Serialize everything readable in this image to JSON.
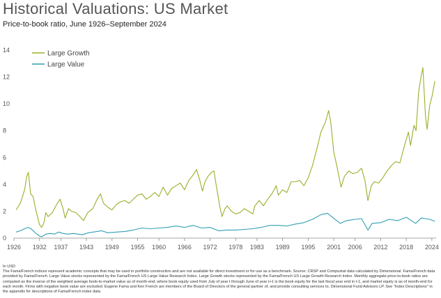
{
  "title": "Historical Valuations: US Market",
  "subtitle": "Price-to-book ratio, June 1926–September 2024",
  "footnotes": {
    "currency": "In USD",
    "disclaimer": "The Fama/French indices represent academic concepts that may be used in portfolio construction and are not available for direct investment or for use as a benchmark. Source: CRSP and Compustat data calculated by Dimensional. Fama/French data provided by Fama/French. Large Value stocks represented by the Fama/French US Large Value Research Index. Large Growth stocks represented by the Fama/French US Large Growth Research Index. Monthly aggregate price-to-book ratios are computed as the inverse of the weighted average book-to-market value as of month-end, where book equity used from July of year t through June of year t+1 is the book equity for the last fiscal year end in t-1, and market equity is as of month-end for each month. Firms with negative book value are excluded. Eugene Fama and Ken French are members of the Board of Directors of the general partner of, and provide consulting services to, Dimensional Fund Advisors LP. See \"Index Descriptions\" in the appendix for descriptions of Fama/French index data."
  },
  "chart_data": {
    "type": "line",
    "title": "Historical Valuations: US Market",
    "subtitle": "Price-to-book ratio, June 1926–September 2024",
    "xlabel": "",
    "ylabel": "",
    "xlim": [
      1926,
      2025
    ],
    "ylim": [
      0,
      14
    ],
    "yticks": [
      "0",
      "2",
      "4",
      "6",
      "8",
      "10",
      "12",
      "14"
    ],
    "xticks": [
      "1926",
      "1932",
      "1937",
      "1943",
      "1949",
      "1955",
      "1960",
      "1966",
      "1972",
      "1978",
      "1983",
      "1989",
      "1995",
      "2001",
      "2006",
      "2012",
      "2018",
      "2024"
    ],
    "grid": false,
    "legend_position": "top-left",
    "series": [
      {
        "name": "Large Growth",
        "color": "#9aaf2a",
        "points": [
          [
            1926.5,
            2.1
          ],
          [
            1927.5,
            2.6
          ],
          [
            1928.5,
            3.6
          ],
          [
            1929.0,
            4.6
          ],
          [
            1929.4,
            4.9
          ],
          [
            1929.9,
            3.3
          ],
          [
            1930.5,
            3.1
          ],
          [
            1931.0,
            2.3
          ],
          [
            1931.5,
            1.6
          ],
          [
            1932.0,
            1.0
          ],
          [
            1932.5,
            0.8
          ],
          [
            1933.0,
            1.1
          ],
          [
            1933.5,
            1.9
          ],
          [
            1934.0,
            1.6
          ],
          [
            1935.0,
            1.9
          ],
          [
            1936.0,
            2.5
          ],
          [
            1936.8,
            2.9
          ],
          [
            1937.5,
            2.2
          ],
          [
            1938.0,
            1.5
          ],
          [
            1938.8,
            2.2
          ],
          [
            1939.5,
            2.0
          ],
          [
            1940.5,
            1.9
          ],
          [
            1941.5,
            1.6
          ],
          [
            1942.3,
            1.3
          ],
          [
            1943.3,
            1.9
          ],
          [
            1944.5,
            2.2
          ],
          [
            1945.5,
            2.9
          ],
          [
            1946.3,
            3.3
          ],
          [
            1947.0,
            2.6
          ],
          [
            1948.0,
            2.3
          ],
          [
            1949.0,
            2.1
          ],
          [
            1950.0,
            2.5
          ],
          [
            1951.0,
            2.7
          ],
          [
            1952.0,
            2.8
          ],
          [
            1953.0,
            2.6
          ],
          [
            1954.0,
            2.9
          ],
          [
            1955.0,
            3.2
          ],
          [
            1956.0,
            3.3
          ],
          [
            1957.0,
            2.9
          ],
          [
            1958.0,
            3.1
          ],
          [
            1959.0,
            3.4
          ],
          [
            1960.0,
            3.1
          ],
          [
            1961.0,
            3.8
          ],
          [
            1962.0,
            3.2
          ],
          [
            1963.0,
            3.7
          ],
          [
            1964.0,
            3.9
          ],
          [
            1965.0,
            4.1
          ],
          [
            1966.0,
            3.6
          ],
          [
            1967.0,
            4.3
          ],
          [
            1968.0,
            4.7
          ],
          [
            1968.8,
            5.1
          ],
          [
            1969.5,
            4.4
          ],
          [
            1970.2,
            3.5
          ],
          [
            1970.8,
            4.2
          ],
          [
            1971.5,
            4.6
          ],
          [
            1972.3,
            4.9
          ],
          [
            1972.9,
            5.0
          ],
          [
            1973.5,
            3.8
          ],
          [
            1974.3,
            2.3
          ],
          [
            1974.8,
            1.6
          ],
          [
            1975.5,
            2.2
          ],
          [
            1976.0,
            2.4
          ],
          [
            1977.0,
            2.0
          ],
          [
            1978.0,
            1.8
          ],
          [
            1979.0,
            1.9
          ],
          [
            1980.0,
            2.2
          ],
          [
            1981.0,
            2.0
          ],
          [
            1982.0,
            1.8
          ],
          [
            1982.5,
            2.4
          ],
          [
            1983.5,
            2.8
          ],
          [
            1984.5,
            2.4
          ],
          [
            1985.5,
            2.9
          ],
          [
            1986.5,
            3.3
          ],
          [
            1987.5,
            3.9
          ],
          [
            1988.0,
            3.2
          ],
          [
            1989.0,
            3.6
          ],
          [
            1990.0,
            3.4
          ],
          [
            1991.0,
            4.2
          ],
          [
            1992.0,
            4.2
          ],
          [
            1993.0,
            4.3
          ],
          [
            1994.0,
            3.9
          ],
          [
            1995.0,
            4.5
          ],
          [
            1996.0,
            5.4
          ],
          [
            1997.0,
            6.6
          ],
          [
            1998.0,
            7.9
          ],
          [
            1999.0,
            8.6
          ],
          [
            1999.8,
            9.5
          ],
          [
            2000.3,
            8.6
          ],
          [
            2001.0,
            6.4
          ],
          [
            2001.7,
            5.4
          ],
          [
            2002.7,
            3.8
          ],
          [
            2003.5,
            4.6
          ],
          [
            2004.5,
            5.0
          ],
          [
            2005.5,
            4.8
          ],
          [
            2006.5,
            4.9
          ],
          [
            2007.5,
            5.2
          ],
          [
            2008.3,
            4.3
          ],
          [
            2009.0,
            2.8
          ],
          [
            2009.8,
            3.9
          ],
          [
            2010.5,
            4.2
          ],
          [
            2011.5,
            4.1
          ],
          [
            2012.5,
            4.5
          ],
          [
            2013.5,
            5.0
          ],
          [
            2014.5,
            5.4
          ],
          [
            2015.5,
            5.7
          ],
          [
            2016.5,
            5.6
          ],
          [
            2017.5,
            6.8
          ],
          [
            2018.5,
            7.9
          ],
          [
            2019.0,
            6.9
          ],
          [
            2019.8,
            8.4
          ],
          [
            2020.3,
            8.0
          ],
          [
            2020.9,
            10.9
          ],
          [
            2021.5,
            12.1
          ],
          [
            2021.9,
            12.7
          ],
          [
            2022.5,
            9.1
          ],
          [
            2022.9,
            8.1
          ],
          [
            2023.5,
            9.9
          ],
          [
            2024.0,
            10.5
          ],
          [
            2024.7,
            11.7
          ]
        ]
      },
      {
        "name": "Large Value",
        "color": "#2f9fb3",
        "points": [
          [
            1926.5,
            0.45
          ],
          [
            1927.5,
            0.55
          ],
          [
            1928.5,
            0.7
          ],
          [
            1929.3,
            0.8
          ],
          [
            1930.0,
            0.7
          ],
          [
            1931.0,
            0.4
          ],
          [
            1932.0,
            0.15
          ],
          [
            1932.5,
            0.1
          ],
          [
            1933.5,
            0.3
          ],
          [
            1934.5,
            0.35
          ],
          [
            1935.5,
            0.3
          ],
          [
            1936.5,
            0.45
          ],
          [
            1937.5,
            0.35
          ],
          [
            1938.5,
            0.3
          ],
          [
            1940.0,
            0.35
          ],
          [
            1942.0,
            0.25
          ],
          [
            1943.5,
            0.4
          ],
          [
            1945.5,
            0.5
          ],
          [
            1946.5,
            0.55
          ],
          [
            1948.0,
            0.4
          ],
          [
            1950.0,
            0.45
          ],
          [
            1952.0,
            0.5
          ],
          [
            1954.0,
            0.6
          ],
          [
            1956.0,
            0.75
          ],
          [
            1958.0,
            0.7
          ],
          [
            1960.0,
            0.75
          ],
          [
            1962.0,
            0.8
          ],
          [
            1964.0,
            0.9
          ],
          [
            1966.0,
            0.8
          ],
          [
            1968.0,
            0.95
          ],
          [
            1970.0,
            0.75
          ],
          [
            1972.0,
            0.8
          ],
          [
            1974.0,
            0.55
          ],
          [
            1976.0,
            0.6
          ],
          [
            1978.0,
            0.6
          ],
          [
            1980.0,
            0.65
          ],
          [
            1982.0,
            0.7
          ],
          [
            1984.0,
            0.8
          ],
          [
            1986.0,
            0.95
          ],
          [
            1988.0,
            0.95
          ],
          [
            1990.0,
            0.9
          ],
          [
            1992.0,
            1.05
          ],
          [
            1994.0,
            1.15
          ],
          [
            1996.0,
            1.4
          ],
          [
            1998.0,
            1.75
          ],
          [
            1999.5,
            1.85
          ],
          [
            2000.5,
            1.6
          ],
          [
            2002.5,
            1.1
          ],
          [
            2004.0,
            1.3
          ],
          [
            2006.0,
            1.4
          ],
          [
            2007.5,
            1.45
          ],
          [
            2009.0,
            0.6
          ],
          [
            2010.0,
            1.1
          ],
          [
            2012.0,
            1.15
          ],
          [
            2014.0,
            1.4
          ],
          [
            2016.0,
            1.3
          ],
          [
            2018.0,
            1.55
          ],
          [
            2020.2,
            1.1
          ],
          [
            2021.5,
            1.5
          ],
          [
            2022.5,
            1.45
          ],
          [
            2023.5,
            1.4
          ],
          [
            2024.7,
            1.25
          ]
        ]
      }
    ]
  }
}
